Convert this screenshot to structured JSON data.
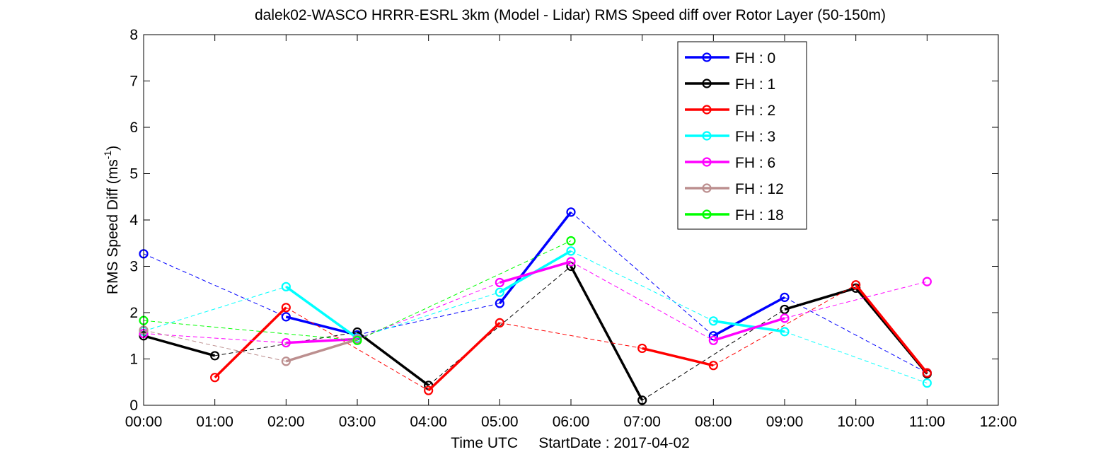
{
  "chart_data": {
    "type": "line",
    "title": "dalek02-WASCO HRRR-ESRL 3km (Model - Lidar) RMS Speed diff over Rotor Layer (50-150m)",
    "xlabel": "Time UTC     StartDate : 2017-04-02",
    "ylabel": "RMS Speed Diff (ms",
    "ylabel_sup": "-1",
    "ylabel_end": ")",
    "xlim": [
      0,
      12
    ],
    "ylim": [
      0,
      8
    ],
    "x_ticks": [
      0,
      1,
      2,
      3,
      4,
      5,
      6,
      7,
      8,
      9,
      10,
      11,
      12
    ],
    "x_tick_labels": [
      "00:00",
      "01:00",
      "02:00",
      "03:00",
      "04:00",
      "05:00",
      "06:00",
      "07:00",
      "08:00",
      "09:00",
      "10:00",
      "11:00",
      "12:00"
    ],
    "y_ticks": [
      0,
      1,
      2,
      3,
      4,
      5,
      6,
      7,
      8
    ],
    "y_tick_labels": [
      "0",
      "1",
      "2",
      "3",
      "4",
      "5",
      "6",
      "7",
      "8"
    ],
    "grid": false,
    "legend_position": "top-right",
    "series": [
      {
        "name": "FH : 0",
        "color": "#0000ff",
        "points": [
          [
            0,
            3.27
          ],
          [
            2,
            1.91
          ],
          [
            3,
            1.52
          ],
          [
            5,
            2.2
          ],
          [
            6,
            4.17
          ],
          [
            8,
            1.5
          ],
          [
            9,
            2.33
          ],
          [
            11,
            0.7
          ]
        ]
      },
      {
        "name": "FH : 1",
        "color": "#000000",
        "points": [
          [
            0,
            1.5
          ],
          [
            1,
            1.07
          ],
          [
            3,
            1.58
          ],
          [
            4,
            0.43
          ],
          [
            6,
            3.0
          ],
          [
            7,
            0.11
          ],
          [
            9,
            2.07
          ],
          [
            10,
            2.53
          ],
          [
            11,
            0.68
          ]
        ]
      },
      {
        "name": "FH : 2",
        "color": "#ff0000",
        "points": [
          [
            1,
            0.6
          ],
          [
            2,
            2.11
          ],
          [
            4,
            0.32
          ],
          [
            5,
            1.78
          ],
          [
            7,
            1.23
          ],
          [
            8,
            0.86
          ],
          [
            10,
            2.6
          ],
          [
            11,
            0.7
          ]
        ]
      },
      {
        "name": "FH : 3",
        "color": "#00ffff",
        "points": [
          [
            0,
            1.6
          ],
          [
            2,
            2.56
          ],
          [
            3,
            1.45
          ],
          [
            5,
            2.44
          ],
          [
            6,
            3.33
          ],
          [
            8,
            1.82
          ],
          [
            9,
            1.59
          ],
          [
            11,
            0.48
          ]
        ]
      },
      {
        "name": "FH : 6",
        "color": "#ff00ff",
        "points": [
          [
            0,
            1.55
          ],
          [
            2,
            1.35
          ],
          [
            3,
            1.43
          ],
          [
            5,
            2.65
          ],
          [
            6,
            3.1
          ],
          [
            8,
            1.4
          ],
          [
            9,
            1.88
          ],
          [
            11,
            2.67
          ]
        ]
      },
      {
        "name": "FH : 12",
        "color": "#bc8f8f",
        "points": [
          [
            0,
            1.62
          ],
          [
            2,
            0.95
          ],
          [
            3,
            1.42
          ]
        ]
      },
      {
        "name": "FH : 18",
        "color": "#00ff00",
        "points": [
          [
            0,
            1.83
          ],
          [
            3,
            1.4
          ],
          [
            6,
            3.55
          ]
        ]
      }
    ]
  }
}
